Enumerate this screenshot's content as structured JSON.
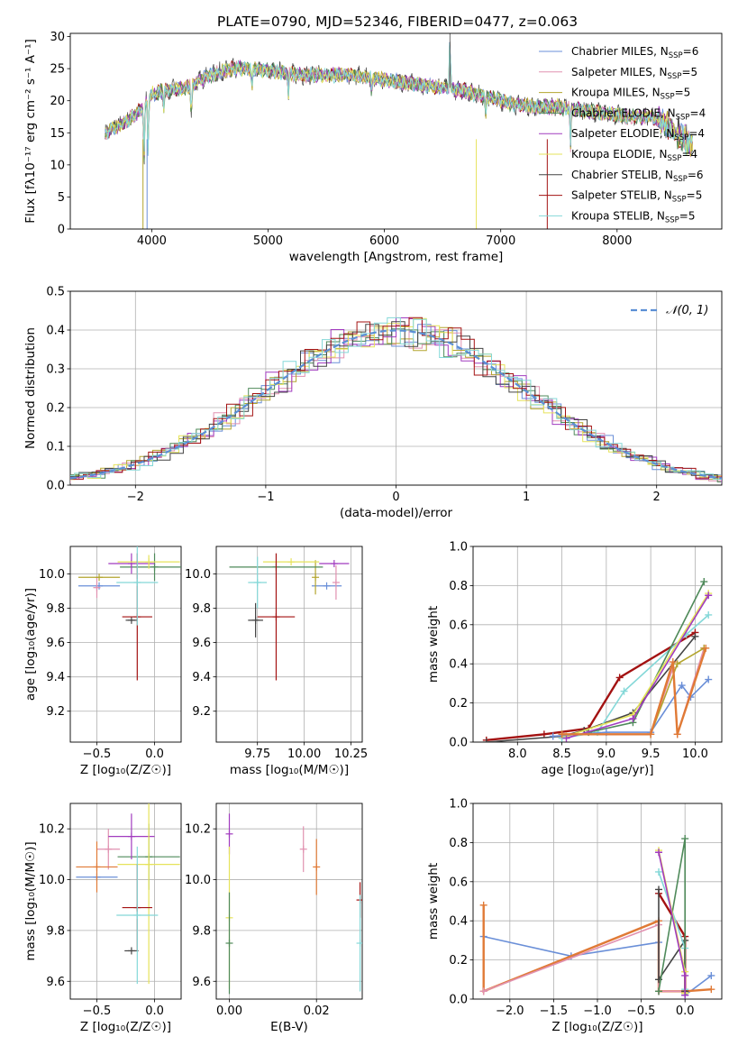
{
  "colors": {
    "Chabrier MILES": "#6a8fd8",
    "Salpeter MILES": "#e191b0",
    "Kroupa MILES": "#b3a52f",
    "Chabrier ELODIE": "#4f8a5a",
    "Salpeter ELODIE": "#a13bbf",
    "Kroupa ELODIE": "#e6e35a",
    "Chabrier STELIB": "#444444",
    "Salpeter STELIB": "#a31212",
    "Kroupa STELIB": "#84d8d8",
    "gaussian": "#5b8fd5",
    "orange": "#e07a36"
  },
  "chart_data": [
    {
      "id": "spectrum",
      "type": "line",
      "title": "PLATE=0790, MJD=52346, FIBERID=0477, z=0.063",
      "xlabel": "wavelength [Angstrom, rest frame]",
      "ylabel": "Flux [fλ10⁻¹⁷ erg cm⁻² s⁻¹ A⁻¹]",
      "xlim": [
        3300,
        8900
      ],
      "ylim": [
        0,
        30.5
      ],
      "xticks": [
        4000,
        5000,
        6000,
        7000,
        8000
      ],
      "yticks": [
        0,
        5,
        10,
        15,
        20,
        25,
        30
      ],
      "grid": false,
      "legend_position": "top-right",
      "legend": [
        {
          "label": "Chabrier MILES, N",
          "sub": "SSP",
          "tail": "=6"
        },
        {
          "label": "Salpeter MILES, N",
          "sub": "SSP",
          "tail": "=5"
        },
        {
          "label": "Kroupa MILES, N",
          "sub": "SSP",
          "tail": "=5"
        },
        {
          "label": "Chabrier ELODIE, N",
          "sub": "SSP",
          "tail": "=4"
        },
        {
          "label": "Salpeter ELODIE, N",
          "sub": "SSP",
          "tail": "=4"
        },
        {
          "label": "Kroupa ELODIE, N",
          "sub": "SSP",
          "tail": "=4"
        },
        {
          "label": "Chabrier STELIB, N",
          "sub": "SSP",
          "tail": "=6"
        },
        {
          "label": "Salpeter STELIB, N",
          "sub": "SSP",
          "tail": "=5"
        },
        {
          "label": "Kroupa STELIB, N",
          "sub": "SSP",
          "tail": "=5"
        }
      ],
      "continuum": [
        [
          3600,
          15
        ],
        [
          3700,
          16
        ],
        [
          3800,
          17
        ],
        [
          3900,
          18.5
        ],
        [
          4000,
          21
        ],
        [
          4100,
          21.5
        ],
        [
          4300,
          22
        ],
        [
          4500,
          24
        ],
        [
          4700,
          25
        ],
        [
          4900,
          25
        ],
        [
          5100,
          24.5
        ],
        [
          5300,
          24
        ],
        [
          5500,
          24
        ],
        [
          5700,
          24
        ],
        [
          5900,
          23.5
        ],
        [
          6100,
          23
        ],
        [
          6300,
          22.5
        ],
        [
          6500,
          22
        ],
        [
          6700,
          21.5
        ],
        [
          6900,
          20.5
        ],
        [
          7100,
          19.5
        ],
        [
          7300,
          19
        ],
        [
          7500,
          19
        ],
        [
          7700,
          18.5
        ],
        [
          7900,
          18
        ],
        [
          8100,
          17.5
        ],
        [
          8300,
          17.5
        ],
        [
          8500,
          15
        ],
        [
          8650,
          13
        ]
      ],
      "features": [
        [
          3934,
          -9
        ],
        [
          3969,
          -8
        ],
        [
          4102,
          -3
        ],
        [
          4340,
          -5
        ],
        [
          4861,
          -3
        ],
        [
          5175,
          -3
        ],
        [
          5890,
          -2
        ],
        [
          6563,
          8
        ],
        [
          6870,
          -3
        ],
        [
          7600,
          -6
        ]
      ]
    },
    {
      "id": "residuals",
      "type": "line",
      "xlabel": "(data-model)/error",
      "ylabel": "Normed distribution",
      "xlim": [
        -2.5,
        2.5
      ],
      "ylim": [
        0,
        0.5
      ],
      "xticks": [
        -2,
        -1,
        0,
        1,
        2
      ],
      "yticks": [
        0.0,
        0.1,
        0.2,
        0.3,
        0.4,
        0.5
      ],
      "grid": true,
      "legend_position": "top-right",
      "legend_label": "𝒩(0, 1)",
      "gaussian_sigma": 1,
      "bin_width": 0.1
    },
    {
      "id": "age-vs-Z",
      "type": "scatter",
      "xlabel": "Z [log₁₀(Z/Z☉)]",
      "ylabel": "age  [log₁₀(age/yr)]",
      "xlim": [
        -0.73,
        0.23
      ],
      "ylim": [
        9.02,
        10.16
      ],
      "xticks": [
        -0.5,
        0.0
      ],
      "yticks": [
        9.2,
        9.4,
        9.6,
        9.8,
        10.0
      ],
      "grid": true,
      "points": [
        {
          "model": "Chabrier MILES",
          "x": -0.48,
          "y": 9.93,
          "xerr": 0.18,
          "yerr": 0.0
        },
        {
          "model": "Salpeter MILES",
          "x": -0.5,
          "y": 9.92,
          "xerr": 0.0,
          "yerr": 0.06
        },
        {
          "model": "Kroupa MILES",
          "x": -0.48,
          "y": 9.98,
          "xerr": 0.18,
          "yerr": 0.0
        },
        {
          "model": "Chabrier ELODIE",
          "x": 0.0,
          "y": 10.04,
          "xerr": 0.3,
          "yerr": 0.08
        },
        {
          "model": "Salpeter ELODIE",
          "x": -0.2,
          "y": 10.06,
          "xerr": 0.2,
          "yerr": 0.06
        },
        {
          "model": "Kroupa ELODIE",
          "x": -0.05,
          "y": 10.07,
          "xerr": 0.27,
          "yerr": 0.04
        },
        {
          "model": "Chabrier STELIB",
          "x": -0.2,
          "y": 9.73,
          "xerr": 0.05,
          "yerr": 0.0
        },
        {
          "model": "Salpeter STELIB",
          "x": -0.15,
          "y": 9.75,
          "xerr": 0.13,
          "yerr": 0.37
        },
        {
          "model": "Kroupa STELIB",
          "x": -0.15,
          "y": 9.95,
          "xerr": 0.18,
          "yerr": 0.25
        }
      ]
    },
    {
      "id": "age-vs-mass",
      "type": "scatter",
      "xlabel": "mass [log₁₀(M/M☉)]",
      "ylabel": "",
      "xlim": [
        9.53,
        10.31
      ],
      "ylim": [
        9.02,
        10.16
      ],
      "xticks": [
        9.75,
        10.0,
        10.25
      ],
      "yticks": [
        9.2,
        9.4,
        9.6,
        9.8,
        10.0
      ],
      "grid": true,
      "points": [
        {
          "model": "Chabrier MILES",
          "x": 10.12,
          "y": 9.93,
          "xerr": 0.08,
          "yerr": 0.0
        },
        {
          "model": "Salpeter MILES",
          "x": 10.17,
          "y": 9.95,
          "xerr": 0.0,
          "yerr": 0.1
        },
        {
          "model": "Kroupa MILES",
          "x": 10.06,
          "y": 9.98,
          "xerr": 0.0,
          "yerr": 0.1
        },
        {
          "model": "Chabrier ELODIE",
          "x": 9.85,
          "y": 10.04,
          "xerr": 0.25,
          "yerr": 0.0
        },
        {
          "model": "Salpeter ELODIE",
          "x": 10.16,
          "y": 10.06,
          "xerr": 0.08,
          "yerr": 0.0
        },
        {
          "model": "Kroupa ELODIE",
          "x": 9.93,
          "y": 10.07,
          "xerr": 0.15,
          "yerr": 0.0
        },
        {
          "model": "Chabrier STELIB",
          "x": 9.74,
          "y": 9.73,
          "xerr": 0.04,
          "yerr": 0.1
        },
        {
          "model": "Salpeter STELIB",
          "x": 9.85,
          "y": 9.75,
          "xerr": 0.1,
          "yerr": 0.37
        },
        {
          "model": "Kroupa STELIB",
          "x": 9.75,
          "y": 9.95,
          "xerr": 0.05,
          "yerr": 0.15
        }
      ]
    },
    {
      "id": "weight-vs-age",
      "type": "line",
      "xlabel": "age  [log₁₀(age/yr)]",
      "ylabel": "mass weight",
      "xlim": [
        7.5,
        10.3
      ],
      "ylim": [
        0,
        1.0
      ],
      "xticks": [
        8.0,
        8.5,
        9.0,
        9.5,
        10.0
      ],
      "yticks": [
        0.0,
        0.2,
        0.4,
        0.6,
        0.8,
        1.0
      ],
      "grid": true,
      "series": [
        {
          "model": "Salpeter STELIB",
          "x": [
            7.65,
            8.3,
            8.8,
            9.15,
            10.0
          ],
          "y": [
            0.01,
            0.04,
            0.07,
            0.33,
            0.56
          ]
        },
        {
          "model": "Chabrier STELIB",
          "x": [
            7.65,
            8.5,
            8.75,
            9.3,
            10.0
          ],
          "y": [
            0.0,
            0.03,
            0.06,
            0.15,
            0.54
          ]
        },
        {
          "model": "Kroupa STELIB",
          "x": [
            8.5,
            8.9,
            9.2,
            9.9,
            10.15
          ],
          "y": [
            0.02,
            0.05,
            0.26,
            0.55,
            0.65
          ]
        },
        {
          "model": "Chabrier ELODIE",
          "x": [
            8.8,
            9.3,
            10.1
          ],
          "y": [
            0.05,
            0.1,
            0.82
          ]
        },
        {
          "model": "Kroupa ELODIE",
          "x": [
            8.55,
            9.3,
            10.15
          ],
          "y": [
            0.03,
            0.14,
            0.76
          ]
        },
        {
          "model": "Salpeter ELODIE",
          "x": [
            8.55,
            9.3,
            10.15
          ],
          "y": [
            0.02,
            0.12,
            0.75
          ]
        },
        {
          "model": "Chabrier MILES",
          "x": [
            8.4,
            9.0,
            9.5,
            9.85,
            9.95,
            10.15
          ],
          "y": [
            0.03,
            0.05,
            0.05,
            0.29,
            0.23,
            0.32
          ]
        },
        {
          "model": "Salpeter MILES",
          "x": [
            8.5,
            9.5,
            9.75,
            9.8,
            10.1
          ],
          "y": [
            0.04,
            0.04,
            0.38,
            0.04,
            0.48
          ]
        },
        {
          "model": "Kroupa MILES",
          "x": [
            8.5,
            9.5,
            9.8,
            10.1
          ],
          "y": [
            0.04,
            0.04,
            0.4,
            0.48
          ]
        },
        {
          "model": "orange",
          "x": [
            8.5,
            9.5,
            9.75,
            9.8,
            10.12
          ],
          "y": [
            0.04,
            0.04,
            0.41,
            0.04,
            0.48
          ]
        }
      ]
    },
    {
      "id": "mass-vs-Z",
      "type": "scatter",
      "xlabel": "Z [log₁₀(Z/Z☉)]",
      "ylabel": "mass [log₁₀(M/M☉)]",
      "xlim": [
        -0.73,
        0.23
      ],
      "ylim": [
        9.53,
        10.3
      ],
      "xticks": [
        -0.5,
        0.0
      ],
      "yticks": [
        9.6,
        9.8,
        10.0,
        10.2
      ],
      "grid": true,
      "points": [
        {
          "model": "Chabrier MILES",
          "x": -0.5,
          "y": 10.01,
          "xerr": 0.18,
          "yerr": 0.0
        },
        {
          "model": "Salpeter MILES",
          "x": -0.4,
          "y": 10.12,
          "xerr": 0.1,
          "yerr": 0.08
        },
        {
          "model": "orange",
          "x": -0.5,
          "y": 10.05,
          "xerr": 0.18,
          "yerr": 0.1
        },
        {
          "model": "Chabrier ELODIE",
          "x": -0.05,
          "y": 10.09,
          "xerr": 0.27,
          "yerr": 0.13
        },
        {
          "model": "Salpeter ELODIE",
          "x": -0.2,
          "y": 10.17,
          "xerr": 0.2,
          "yerr": 0.09
        },
        {
          "model": "Kroupa ELODIE",
          "x": -0.05,
          "y": 10.06,
          "xerr": 0.27,
          "yerr": 0.47
        },
        {
          "model": "Chabrier STELIB",
          "x": -0.2,
          "y": 9.72,
          "xerr": 0.06,
          "yerr": 0.0
        },
        {
          "model": "Salpeter STELIB",
          "x": -0.15,
          "y": 9.89,
          "xerr": 0.13,
          "yerr": 0.17
        },
        {
          "model": "Kroupa STELIB",
          "x": -0.15,
          "y": 9.86,
          "xerr": 0.18,
          "yerr": 0.27
        }
      ]
    },
    {
      "id": "mass-vs-ebv",
      "type": "scatter",
      "xlabel": "E(B-V)",
      "ylabel": "",
      "xlim": [
        -0.003,
        0.0305
      ],
      "ylim": [
        9.53,
        10.3
      ],
      "xticks": [
        0.0,
        0.02
      ],
      "yticks": [
        9.6,
        9.8,
        10.0,
        10.2
      ],
      "grid": true,
      "points": [
        {
          "model": "Salpeter ELODIE",
          "x": 0.0,
          "y": 10.18,
          "xerr": 0.0,
          "yerr": 0.08
        },
        {
          "model": "Kroupa ELODIE",
          "x": 0.0,
          "y": 9.85,
          "xerr": 0.0,
          "yerr": 0.28
        },
        {
          "model": "Chabrier ELODIE",
          "x": 0.0,
          "y": 9.75,
          "xerr": 0.0,
          "yerr": 0.2
        },
        {
          "model": "Salpeter MILES",
          "x": 0.017,
          "y": 10.12,
          "xerr": 0.0,
          "yerr": 0.09
        },
        {
          "model": "orange",
          "x": 0.02,
          "y": 10.05,
          "xerr": 0.0,
          "yerr": 0.11
        },
        {
          "model": "Salpeter STELIB",
          "x": 0.03,
          "y": 9.92,
          "xerr": 0.0,
          "yerr": 0.07
        },
        {
          "model": "Kroupa STELIB",
          "x": 0.03,
          "y": 9.75,
          "xerr": 0.0,
          "yerr": 0.19
        }
      ]
    },
    {
      "id": "weight-vs-Z",
      "type": "line",
      "xlabel": "Z [log₁₀(Z/Z☉)]",
      "ylabel": "mass weight",
      "xlim": [
        -2.42,
        0.42
      ],
      "ylim": [
        0,
        1.0
      ],
      "xticks": [
        -2.0,
        -1.5,
        -1.0,
        -0.5,
        0.0
      ],
      "yticks": [
        0.0,
        0.2,
        0.4,
        0.6,
        0.8,
        1.0
      ],
      "grid": true,
      "series": [
        {
          "model": "Chabrier MILES",
          "x": [
            -2.3,
            -1.3,
            -0.3,
            -0.3,
            0.0,
            0.0,
            0.3
          ],
          "y": [
            0.32,
            0.22,
            0.29,
            0.04,
            0.04,
            0.02,
            0.12
          ]
        },
        {
          "model": "orange",
          "x": [
            -2.3,
            -2.3,
            -0.3,
            -0.3,
            0.0,
            0.3
          ],
          "y": [
            0.48,
            0.04,
            0.4,
            0.04,
            0.04,
            0.05
          ]
        },
        {
          "model": "Salpeter MILES",
          "x": [
            -2.3,
            -0.3,
            -0.3,
            0.0
          ],
          "y": [
            0.04,
            0.38,
            0.04,
            0.04
          ]
        },
        {
          "model": "Salpeter STELIB",
          "x": [
            -0.3,
            0.0,
            0.0
          ],
          "y": [
            0.54,
            0.32,
            0.04
          ]
        },
        {
          "model": "Chabrier STELIB",
          "x": [
            -0.3,
            -0.3,
            0.0,
            0.0
          ],
          "y": [
            0.56,
            0.1,
            0.3,
            0.04
          ]
        },
        {
          "model": "Kroupa STELIB",
          "x": [
            -0.3,
            0.0,
            0.0
          ],
          "y": [
            0.65,
            0.26,
            0.05
          ]
        },
        {
          "model": "Chabrier ELODIE",
          "x": [
            -0.3,
            0.0,
            0.0
          ],
          "y": [
            0.04,
            0.82,
            0.03
          ]
        },
        {
          "model": "Kroupa ELODIE",
          "x": [
            -0.3,
            0.0,
            0.0
          ],
          "y": [
            0.76,
            0.14,
            0.03
          ]
        },
        {
          "model": "Salpeter ELODIE",
          "x": [
            -0.3,
            0.0,
            0.0
          ],
          "y": [
            0.75,
            0.12,
            0.02
          ]
        }
      ]
    }
  ]
}
